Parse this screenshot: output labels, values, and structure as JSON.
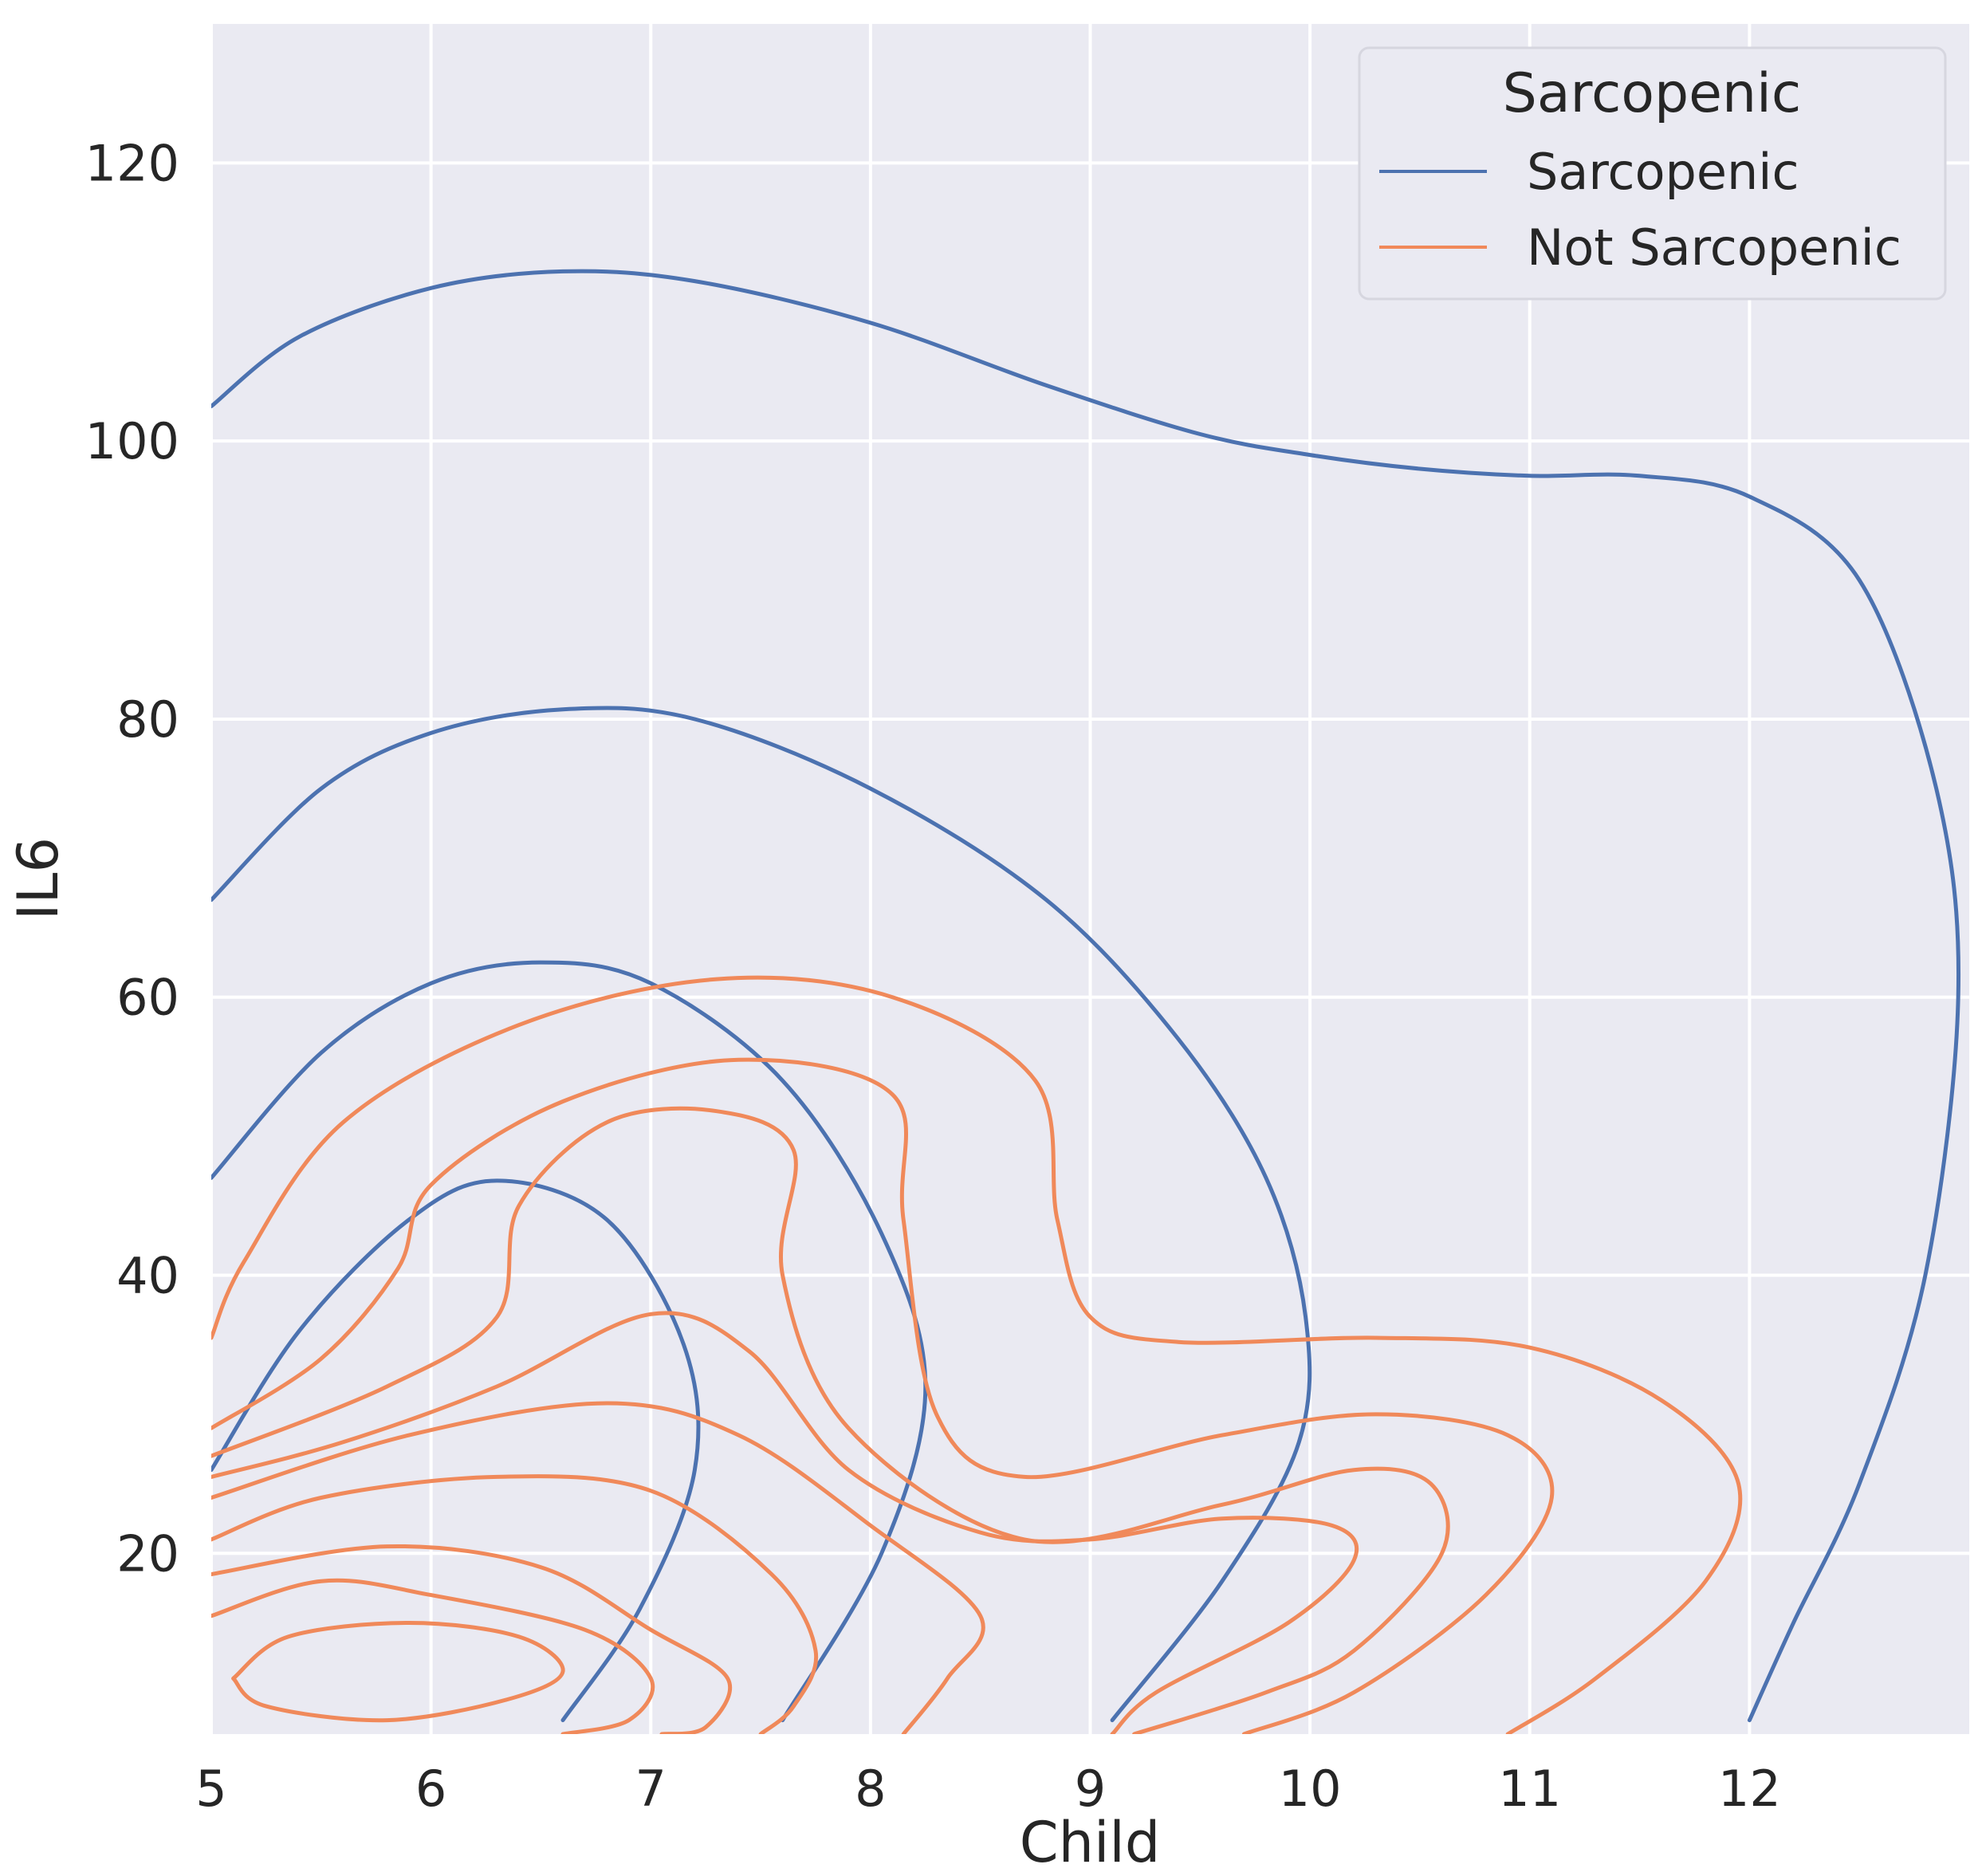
{
  "chart_data": {
    "type": "contour",
    "xlabel": "Child",
    "ylabel": "IL6",
    "xlim": [
      5,
      13
    ],
    "ylim": [
      7,
      130
    ],
    "xticks": [
      5,
      6,
      7,
      8,
      9,
      10,
      11,
      12
    ],
    "yticks": [
      20,
      40,
      60,
      80,
      100,
      120
    ],
    "grid": true,
    "legend": {
      "title": "Sarcopenic",
      "position": "top-right",
      "entries": [
        {
          "label": "Sarcopenic",
          "color": "#4C72B0"
        },
        {
          "label": "Not Sarcopenic",
          "color": "#F0895A"
        }
      ]
    },
    "series": [
      {
        "name": "Sarcopenic",
        "color": "#4C72B0",
        "contours": [
          [
            [
              5.0,
              102.5
            ],
            [
              5.4,
              107.5
            ],
            [
              6.0,
              111.0
            ],
            [
              6.6,
              112.2
            ],
            [
              7.2,
              111.5
            ],
            [
              8.0,
              108.5
            ],
            [
              8.8,
              104.0
            ],
            [
              9.5,
              100.5
            ],
            [
              10.0,
              99.0
            ],
            [
              10.5,
              98.0
            ],
            [
              11.0,
              97.5
            ],
            [
              11.5,
              97.5
            ],
            [
              12.0,
              96.0
            ],
            [
              12.5,
              90.0
            ],
            [
              12.85,
              75.0
            ],
            [
              12.95,
              60.0
            ],
            [
              12.8,
              40.0
            ],
            [
              12.5,
              25.0
            ],
            [
              12.2,
              15.0
            ],
            [
              12.0,
              8.0
            ]
          ],
          [
            [
              5.0,
              67.0
            ],
            [
              5.5,
              75.0
            ],
            [
              6.0,
              79.0
            ],
            [
              6.6,
              80.7
            ],
            [
              7.2,
              80.0
            ],
            [
              8.0,
              75.0
            ],
            [
              8.8,
              67.0
            ],
            [
              9.4,
              57.0
            ],
            [
              9.8,
              47.0
            ],
            [
              9.98,
              37.0
            ],
            [
              9.95,
              28.0
            ],
            [
              9.6,
              18.0
            ],
            [
              9.1,
              8.0
            ]
          ],
          [
            [
              5.0,
              47.0
            ],
            [
              5.5,
              56.0
            ],
            [
              6.0,
              61.0
            ],
            [
              6.5,
              62.5
            ],
            [
              7.0,
              61.0
            ],
            [
              7.6,
              54.0
            ],
            [
              8.05,
              43.0
            ],
            [
              8.25,
              32.0
            ],
            [
              8.05,
              20.0
            ],
            [
              7.6,
              8.0
            ]
          ],
          [
            [
              5.0,
              26.0
            ],
            [
              5.4,
              36.0
            ],
            [
              5.9,
              44.0
            ],
            [
              6.3,
              46.8
            ],
            [
              6.8,
              44.0
            ],
            [
              7.15,
              35.0
            ],
            [
              7.2,
              26.0
            ],
            [
              6.95,
              16.0
            ],
            [
              6.6,
              8.0
            ]
          ]
        ]
      },
      {
        "name": "Not Sarcopenic",
        "color": "#F0895A",
        "contours": [
          [
            [
              5.0,
              35.5
            ],
            [
              5.15,
              41.0
            ],
            [
              5.6,
              51.0
            ],
            [
              6.4,
              58.0
            ],
            [
              7.3,
              61.3
            ],
            [
              8.1,
              60.0
            ],
            [
              8.75,
              54.0
            ],
            [
              8.85,
              44.0
            ],
            [
              9.0,
              37.0
            ],
            [
              9.4,
              35.2
            ],
            [
              10.3,
              35.5
            ],
            [
              11.0,
              34.8
            ],
            [
              11.6,
              31.0
            ],
            [
              11.95,
              25.0
            ],
            [
              11.8,
              18.0
            ],
            [
              11.3,
              11.0
            ],
            [
              10.9,
              7.0
            ]
          ],
          [
            [
              5.0,
              29.0
            ],
            [
              5.5,
              34.0
            ],
            [
              5.85,
              40.5
            ],
            [
              6.0,
              46.5
            ],
            [
              6.6,
              52.5
            ],
            [
              7.4,
              55.5
            ],
            [
              8.1,
              53.0
            ],
            [
              8.15,
              44.0
            ],
            [
              8.3,
              30.0
            ],
            [
              8.7,
              25.5
            ],
            [
              9.6,
              28.5
            ],
            [
              10.3,
              30.0
            ],
            [
              10.9,
              28.5
            ],
            [
              11.1,
              24.0
            ],
            [
              10.8,
              17.0
            ],
            [
              10.2,
              10.0
            ],
            [
              9.7,
              7.0
            ]
          ],
          [
            [
              5.0,
              27.0
            ],
            [
              5.8,
              32.0
            ],
            [
              6.3,
              37.0
            ],
            [
              6.4,
              45.0
            ],
            [
              6.8,
              51.0
            ],
            [
              7.3,
              51.8
            ],
            [
              7.65,
              49.0
            ],
            [
              7.6,
              40.0
            ],
            [
              7.9,
              29.0
            ],
            [
              8.7,
              21.0
            ],
            [
              9.6,
              23.5
            ],
            [
              10.2,
              26.0
            ],
            [
              10.55,
              25.0
            ],
            [
              10.6,
              20.0
            ],
            [
              10.2,
              13.0
            ],
            [
              9.8,
              10.0
            ],
            [
              9.2,
              7.0
            ]
          ],
          [
            [
              5.0,
              25.5
            ],
            [
              5.6,
              28.0
            ],
            [
              6.3,
              32.0
            ],
            [
              7.0,
              37.2
            ],
            [
              7.45,
              34.5
            ],
            [
              7.9,
              26.0
            ],
            [
              8.5,
              21.5
            ],
            [
              9.0,
              21.0
            ],
            [
              9.6,
              22.5
            ],
            [
              10.1,
              22.0
            ],
            [
              10.2,
              19.5
            ],
            [
              9.9,
              15.0
            ],
            [
              9.3,
              10.0
            ],
            [
              9.1,
              7.0
            ]
          ],
          [
            [
              5.0,
              24.0
            ],
            [
              5.9,
              28.5
            ],
            [
              6.8,
              30.8
            ],
            [
              7.4,
              28.5
            ],
            [
              8.0,
              22.0
            ],
            [
              8.5,
              15.5
            ],
            [
              8.35,
              11.0
            ],
            [
              8.15,
              7.0
            ]
          ],
          [
            [
              5.0,
              21.0
            ],
            [
              5.5,
              24.0
            ],
            [
              6.3,
              25.5
            ],
            [
              7.0,
              24.5
            ],
            [
              7.55,
              18.5
            ],
            [
              7.75,
              13.0
            ],
            [
              7.65,
              9.0
            ],
            [
              7.5,
              7.0
            ]
          ],
          [
            [
              5.0,
              18.5
            ],
            [
              5.8,
              20.5
            ],
            [
              6.5,
              19.0
            ],
            [
              7.0,
              14.5
            ],
            [
              7.35,
              11.0
            ],
            [
              7.25,
              7.5
            ],
            [
              7.05,
              7.0
            ]
          ],
          [
            [
              5.0,
              15.5
            ],
            [
              5.5,
              18.0
            ],
            [
              6.0,
              17.0
            ],
            [
              6.7,
              14.5
            ],
            [
              7.0,
              11.0
            ],
            [
              6.9,
              8.0
            ],
            [
              6.6,
              7.0
            ]
          ],
          [
            [
              5.1,
              11.0
            ],
            [
              5.35,
              14.0
            ],
            [
              5.9,
              15.0
            ],
            [
              6.4,
              14.0
            ],
            [
              6.6,
              11.5
            ],
            [
              6.35,
              9.5
            ],
            [
              5.8,
              8.0
            ],
            [
              5.25,
              9.0
            ],
            [
              5.1,
              11.0
            ]
          ]
        ]
      }
    ]
  }
}
